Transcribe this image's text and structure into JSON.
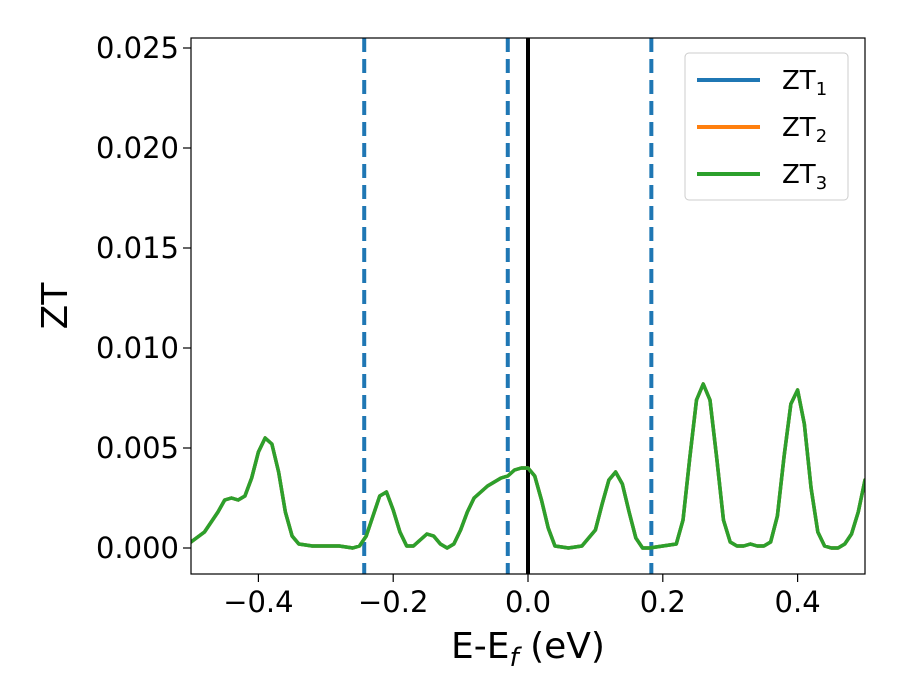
{
  "chart_data": {
    "type": "line",
    "title": "",
    "xlabel": {
      "main": "E-E",
      "sub": "f",
      "unit": " (eV)"
    },
    "ylabel": "ZT",
    "xlim": [
      -0.5,
      0.5
    ],
    "ylim": [
      -0.0013,
      0.0255
    ],
    "xticks": [
      -0.4,
      -0.2,
      0.0,
      0.2,
      0.4
    ],
    "xtick_labels": [
      "−0.4",
      "−0.2",
      "0.0",
      "0.2",
      "0.4"
    ],
    "yticks": [
      0.0,
      0.005,
      0.01,
      0.015,
      0.02,
      0.025
    ],
    "ytick_labels": [
      "0.000",
      "0.005",
      "0.010",
      "0.015",
      "0.020",
      "0.025"
    ],
    "grid": false,
    "legend_position": "top-right",
    "vertical_lines": [
      {
        "x": -0.243,
        "style": "dashed",
        "color": "#1f77b4"
      },
      {
        "x": -0.03,
        "style": "dashed",
        "color": "#1f77b4"
      },
      {
        "x": 0.0,
        "style": "solid",
        "color": "#000000"
      },
      {
        "x": 0.183,
        "style": "dashed",
        "color": "#1f77b4"
      }
    ],
    "x": [
      -0.5,
      -0.48,
      -0.46,
      -0.45,
      -0.44,
      -0.43,
      -0.42,
      -0.41,
      -0.4,
      -0.39,
      -0.38,
      -0.37,
      -0.36,
      -0.35,
      -0.34,
      -0.32,
      -0.3,
      -0.28,
      -0.26,
      -0.25,
      -0.24,
      -0.23,
      -0.22,
      -0.21,
      -0.2,
      -0.19,
      -0.18,
      -0.17,
      -0.16,
      -0.15,
      -0.14,
      -0.13,
      -0.12,
      -0.11,
      -0.1,
      -0.09,
      -0.08,
      -0.07,
      -0.06,
      -0.05,
      -0.04,
      -0.03,
      -0.02,
      -0.01,
      0.0,
      0.01,
      0.02,
      0.03,
      0.04,
      0.06,
      0.08,
      0.1,
      0.11,
      0.12,
      0.13,
      0.14,
      0.15,
      0.16,
      0.17,
      0.18,
      0.2,
      0.22,
      0.23,
      0.24,
      0.25,
      0.26,
      0.27,
      0.28,
      0.29,
      0.3,
      0.31,
      0.32,
      0.33,
      0.34,
      0.35,
      0.36,
      0.37,
      0.38,
      0.39,
      0.4,
      0.41,
      0.42,
      0.43,
      0.44,
      0.45,
      0.46,
      0.47,
      0.48,
      0.49,
      0.5
    ],
    "series": [
      {
        "name": "ZT1",
        "label_main": "ZT",
        "label_sub": "1",
        "color": "#1f77b4",
        "y": [
          0.0003,
          0.0008,
          0.0018,
          0.0024,
          0.0025,
          0.0024,
          0.0026,
          0.0035,
          0.0048,
          0.0055,
          0.0052,
          0.0038,
          0.0018,
          0.0006,
          0.0002,
          0.0001,
          0.0001,
          0.0001,
          0.0,
          0.0001,
          0.0006,
          0.0016,
          0.0026,
          0.0028,
          0.0019,
          0.0008,
          0.0001,
          0.0001,
          0.0004,
          0.0007,
          0.0006,
          0.0002,
          0.0,
          0.0002,
          0.0009,
          0.0018,
          0.0025,
          0.0028,
          0.0031,
          0.0033,
          0.0035,
          0.0036,
          0.0039,
          0.004,
          0.004,
          0.0036,
          0.0024,
          0.001,
          0.0001,
          0.0,
          0.0001,
          0.0009,
          0.0022,
          0.0034,
          0.0038,
          0.0032,
          0.0018,
          0.0005,
          0.0,
          0.0,
          0.0001,
          0.0002,
          0.0014,
          0.0045,
          0.0074,
          0.0082,
          0.0074,
          0.0045,
          0.0014,
          0.0003,
          0.0001,
          0.0001,
          0.0002,
          0.0001,
          0.0001,
          0.0003,
          0.0016,
          0.0046,
          0.0072,
          0.0079,
          0.0062,
          0.003,
          0.0008,
          0.0001,
          0.0,
          0.0,
          0.0002,
          0.0007,
          0.0018,
          0.0034
        ]
      },
      {
        "name": "ZT2",
        "label_main": "ZT",
        "label_sub": "2",
        "color": "#ff7f0e",
        "y": [
          0.0003,
          0.0008,
          0.0018,
          0.0024,
          0.0025,
          0.0024,
          0.0026,
          0.0035,
          0.0048,
          0.0055,
          0.0052,
          0.0038,
          0.0018,
          0.0006,
          0.0002,
          0.0001,
          0.0001,
          0.0001,
          0.0,
          0.0001,
          0.0006,
          0.0016,
          0.0026,
          0.0028,
          0.0019,
          0.0008,
          0.0001,
          0.0001,
          0.0004,
          0.0007,
          0.0006,
          0.0002,
          0.0,
          0.0002,
          0.0009,
          0.0018,
          0.0025,
          0.0028,
          0.0031,
          0.0033,
          0.0035,
          0.0036,
          0.0039,
          0.004,
          0.004,
          0.0036,
          0.0024,
          0.001,
          0.0001,
          0.0,
          0.0001,
          0.0009,
          0.0022,
          0.0034,
          0.0038,
          0.0032,
          0.0018,
          0.0005,
          0.0,
          0.0,
          0.0001,
          0.0002,
          0.0014,
          0.0045,
          0.0074,
          0.0082,
          0.0074,
          0.0045,
          0.0014,
          0.0003,
          0.0001,
          0.0001,
          0.0002,
          0.0001,
          0.0001,
          0.0003,
          0.0016,
          0.0046,
          0.0072,
          0.0079,
          0.0062,
          0.003,
          0.0008,
          0.0001,
          0.0,
          0.0,
          0.0002,
          0.0007,
          0.0018,
          0.0034
        ]
      },
      {
        "name": "ZT3",
        "label_main": "ZT",
        "label_sub": "3",
        "color": "#2ca02c",
        "y": [
          0.0003,
          0.0008,
          0.0018,
          0.0024,
          0.0025,
          0.0024,
          0.0026,
          0.0035,
          0.0048,
          0.0055,
          0.0052,
          0.0038,
          0.0018,
          0.0006,
          0.0002,
          0.0001,
          0.0001,
          0.0001,
          0.0,
          0.0001,
          0.0006,
          0.0016,
          0.0026,
          0.0028,
          0.0019,
          0.0008,
          0.0001,
          0.0001,
          0.0004,
          0.0007,
          0.0006,
          0.0002,
          0.0,
          0.0002,
          0.0009,
          0.0018,
          0.0025,
          0.0028,
          0.0031,
          0.0033,
          0.0035,
          0.0036,
          0.0039,
          0.004,
          0.004,
          0.0036,
          0.0024,
          0.001,
          0.0001,
          0.0,
          0.0001,
          0.0009,
          0.0022,
          0.0034,
          0.0038,
          0.0032,
          0.0018,
          0.0005,
          0.0,
          0.0,
          0.0001,
          0.0002,
          0.0014,
          0.0045,
          0.0074,
          0.0082,
          0.0074,
          0.0045,
          0.0014,
          0.0003,
          0.0001,
          0.0001,
          0.0002,
          0.0001,
          0.0001,
          0.0003,
          0.0016,
          0.0046,
          0.0072,
          0.0079,
          0.0062,
          0.003,
          0.0008,
          0.0001,
          0.0,
          0.0,
          0.0002,
          0.0007,
          0.0018,
          0.0034
        ]
      }
    ]
  }
}
